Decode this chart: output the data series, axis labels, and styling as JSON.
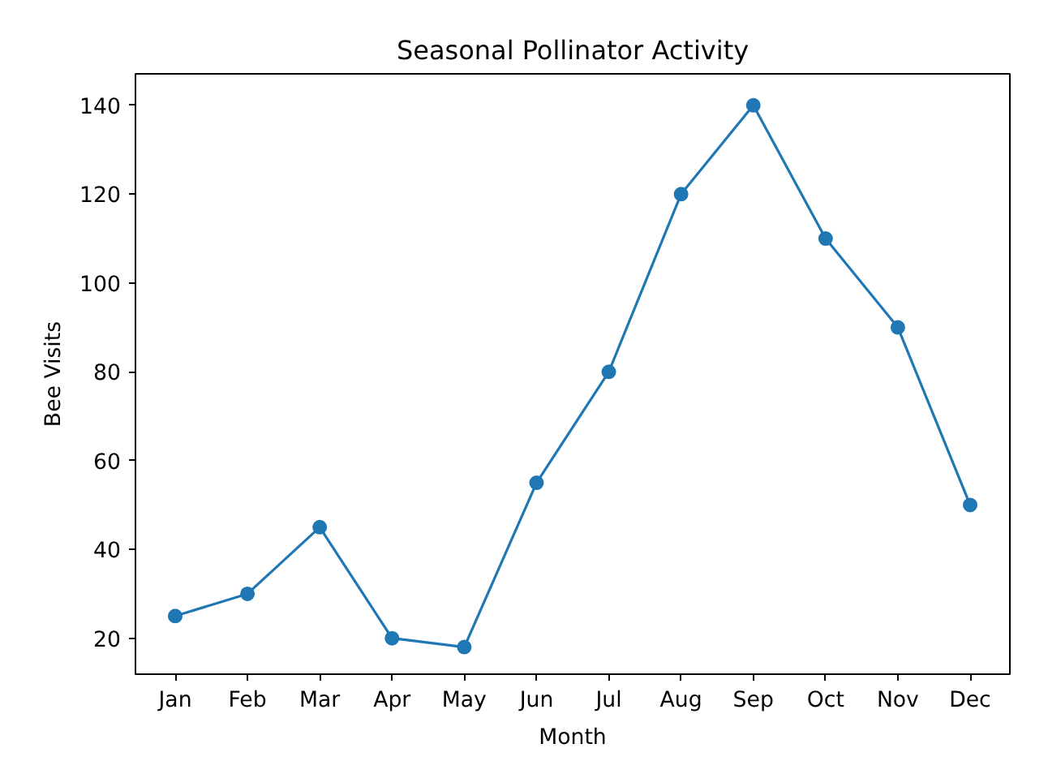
{
  "chart_data": {
    "type": "line",
    "title": "Seasonal Pollinator Activity",
    "xlabel": "Month",
    "ylabel": "Bee Visits",
    "categories": [
      "Jan",
      "Feb",
      "Mar",
      "Apr",
      "May",
      "Jun",
      "Jul",
      "Aug",
      "Sep",
      "Oct",
      "Nov",
      "Dec"
    ],
    "series": [
      {
        "color": "#1f77b4",
        "values": [
          25,
          30,
          45,
          20,
          18,
          55,
          80,
          120,
          140,
          110,
          90,
          50
        ]
      }
    ],
    "ylim": [
      11.9,
      147.1
    ],
    "yticks": [
      20,
      40,
      60,
      80,
      100,
      120,
      140
    ],
    "grid": false,
    "marker": "circle",
    "line_style": "solid"
  }
}
